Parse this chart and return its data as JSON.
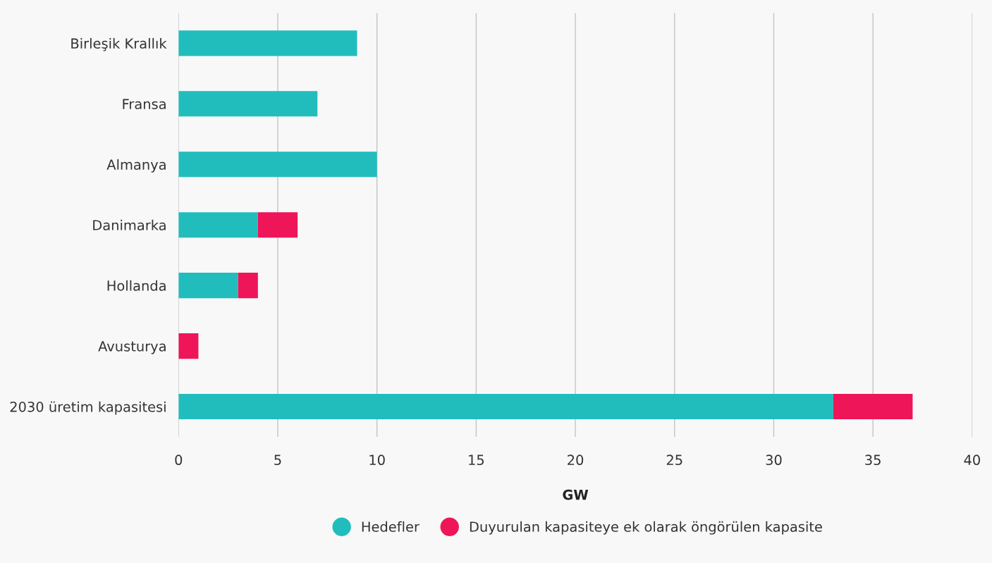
{
  "chart_data": {
    "type": "bar",
    "orientation": "horizontal",
    "stacked": true,
    "xlabel": "GW",
    "categories": [
      "Birleşik Krallık",
      "Fransa",
      "Almanya",
      "Danimarka",
      "Hollanda",
      "Avusturya",
      "2030 üretim kapasitesi"
    ],
    "series": [
      {
        "name": "Hedefler",
        "color": "#21bdbd",
        "values": [
          9,
          7,
          10,
          4,
          3,
          0,
          33
        ]
      },
      {
        "name": "Duyurulan kapasiteye ek olarak öngörülen kapasite",
        "color": "#ee1558",
        "values": [
          0,
          0,
          0,
          2,
          1,
          1,
          4
        ]
      }
    ],
    "xlim": [
      0,
      40
    ],
    "xticks": [
      0,
      5,
      10,
      15,
      20,
      25,
      30,
      35,
      40
    ],
    "grid": "x",
    "legend": "bottom"
  }
}
